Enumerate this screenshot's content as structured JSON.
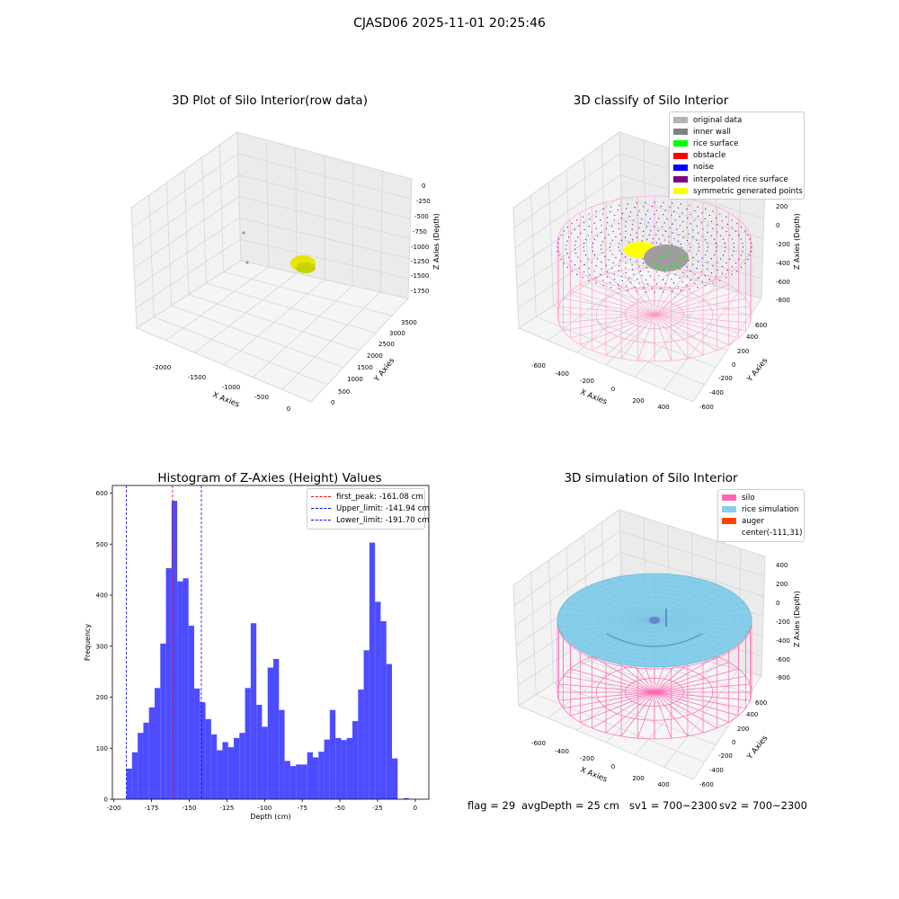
{
  "figure": {
    "suptitle": "CJASD06 2025-11-01 20:25:46",
    "footer": {
      "flag": "flag = 29",
      "avg_depth": "avgDepth = 25 cm",
      "sv1": "sv1 = 700~2300",
      "sv2": "sv2 = 700~2300"
    },
    "colors": {
      "hist_bar": "#4d4dff",
      "silo_wire": "#ff69b4",
      "rice_surface": "#87ceeb",
      "yellow_points": "#ffff00",
      "gray_points": "#a6a6a6"
    }
  },
  "panels": {
    "raw": {
      "title": "3D Plot of Silo Interior(row data)",
      "xlabel": "X Axies",
      "ylabel": "Y Axies",
      "zlabel": "Z Axies (Depth)",
      "xticks": [
        "-2000",
        "-1500",
        "-1000",
        "-500",
        "0"
      ],
      "yticks": [
        "0",
        "500",
        "1000",
        "1500",
        "2000",
        "2500",
        "3000",
        "3500"
      ],
      "zticks": [
        "0",
        "-250",
        "-500",
        "-750",
        "-1000",
        "-1250",
        "-1500",
        "-1750"
      ]
    },
    "classify": {
      "title": "3D classify of Silo Interior",
      "xlabel": "X Axies",
      "ylabel": "Y Axies",
      "zlabel": "Z Axies (Depth)",
      "xticks": [
        "-600",
        "-400",
        "-200",
        "0",
        "200",
        "400"
      ],
      "yticks": [
        "-600",
        "-400",
        "-200",
        "0",
        "200",
        "400",
        "600"
      ],
      "zticks": [
        "200",
        "0",
        "-200",
        "-400",
        "-600",
        "-800"
      ],
      "ztick_partial": "00",
      "legend": [
        {
          "label": "original data",
          "color": "#b3b3b3"
        },
        {
          "label": "inner wall",
          "color": "#808080"
        },
        {
          "label": "rice surface",
          "color": "#00ff00"
        },
        {
          "label": "obstacle",
          "color": "#ff0000"
        },
        {
          "label": "noise",
          "color": "#0000ff"
        },
        {
          "label": "interpolated rice surface",
          "color": "#800080"
        },
        {
          "label": "symmetric generated points",
          "color": "#ffff00"
        }
      ]
    },
    "simulation": {
      "title": "3D simulation of Silo Interior",
      "xlabel": "X Axies",
      "ylabel": "Y Axies",
      "zlabel": "Z Axies (Depth)",
      "xticks": [
        "-600",
        "-400",
        "-200",
        "0",
        "200",
        "400"
      ],
      "yticks": [
        "-600",
        "-400",
        "-200",
        "0",
        "200",
        "400",
        "600"
      ],
      "zticks": [
        "400",
        "200",
        "0",
        "-200",
        "-400",
        "-600",
        "-800"
      ],
      "legend": [
        {
          "label": "silo",
          "color": "#ff69b4"
        },
        {
          "label": "rice simulation",
          "color": "#87ceeb"
        },
        {
          "label": "auger",
          "color": "#ff4500"
        },
        {
          "label": "center(-111,31)",
          "color": "#ffffff"
        }
      ]
    }
  },
  "chart_data": {
    "type": "bar",
    "title": "Histogram of Z-Axies (Height) Values",
    "xlabel": "Depth (cm)",
    "ylabel": "Frequency",
    "xlim": [
      -201,
      9
    ],
    "ylim": [
      0,
      615
    ],
    "xticks": [
      -200,
      -175,
      -150,
      -125,
      -100,
      -75,
      -50,
      -25,
      0
    ],
    "yticks": [
      0,
      100,
      200,
      300,
      400,
      500,
      600
    ],
    "bin_edges_start": -191.7,
    "bin_width": 3.75,
    "values": [
      60,
      92,
      130,
      150,
      180,
      218,
      305,
      453,
      585,
      427,
      433,
      340,
      217,
      190,
      157,
      127,
      96,
      112,
      102,
      120,
      130,
      218,
      345,
      185,
      142,
      258,
      275,
      175,
      75,
      65,
      68,
      68,
      92,
      82,
      93,
      117,
      175,
      120,
      116,
      120,
      153,
      215,
      292,
      503,
      387,
      349,
      265,
      80,
      0,
      2
    ],
    "vlines": [
      {
        "label": "first_peak: -161.08 cm",
        "x": -161.08,
        "color": "#ff0000"
      },
      {
        "label": "Upper_limit: -141.94 cm",
        "x": -141.94,
        "color": "#0000ff"
      },
      {
        "label": "Lower_limit: -191.70 cm",
        "x": -191.7,
        "color": "#0000ff"
      }
    ],
    "legend_position": "upper right"
  }
}
